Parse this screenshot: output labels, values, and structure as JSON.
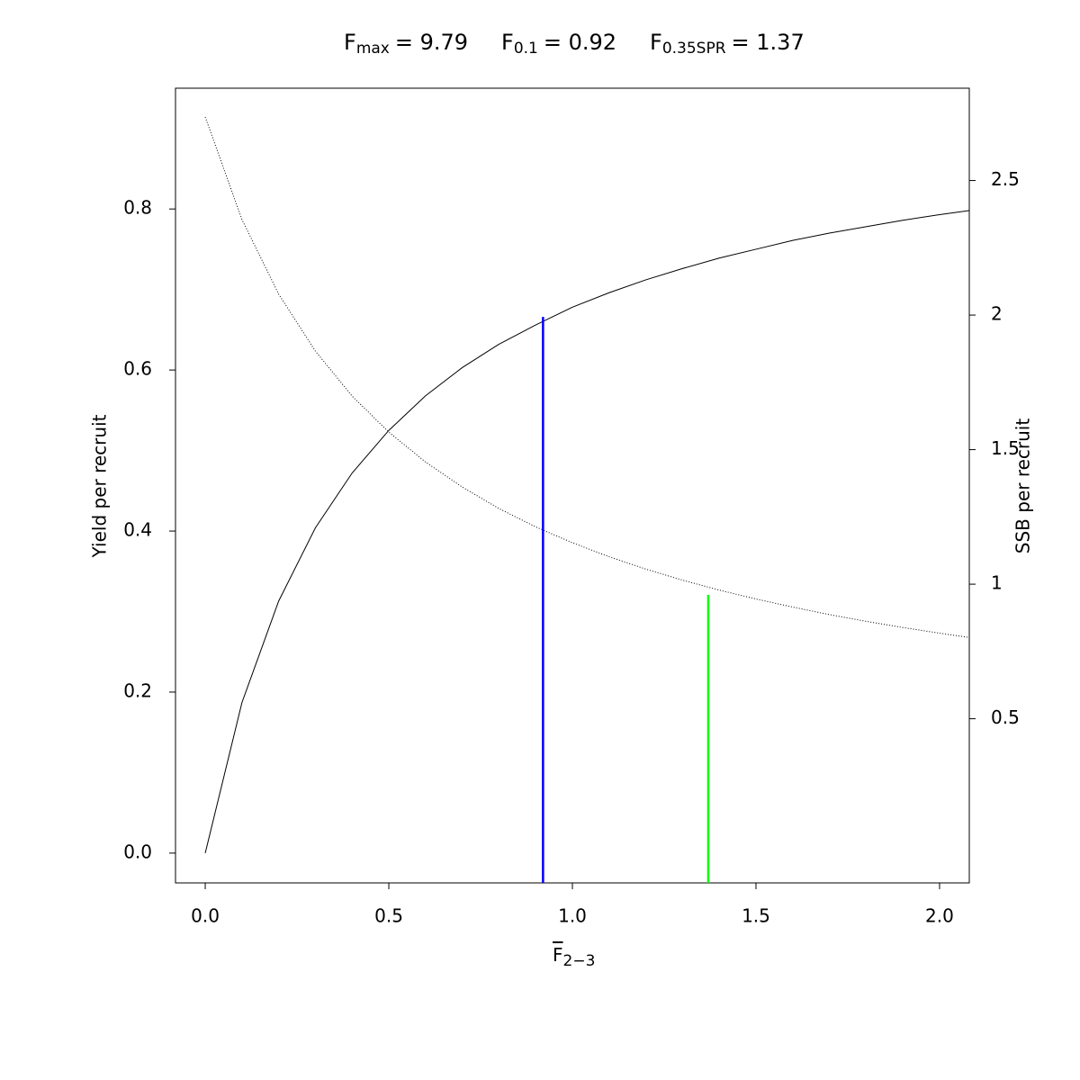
{
  "chart_data": {
    "type": "line",
    "title": [
      {
        "text": "F",
        "sub": "max",
        "rest": "= 9.79"
      },
      {
        "text": "F",
        "sub": "0.1",
        "rest": "= 0.92"
      },
      {
        "text": "F",
        "sub": "0.35SPR",
        "rest": "= 1.37"
      }
    ],
    "x_label": {
      "text": "F",
      "sub": "2−3"
    },
    "y_label": "Yield per recruit",
    "y2_label": "SSB per recruit",
    "x": [
      0,
      0.1,
      0.2,
      0.3,
      0.4,
      0.5,
      0.6,
      0.7,
      0.8,
      0.9,
      1.0,
      1.1,
      1.2,
      1.3,
      1.4,
      1.5,
      1.6,
      1.7,
      1.8,
      1.9,
      2.0,
      2.08
    ],
    "series": [
      {
        "color": "#000000",
        "line_style": "solid",
        "axis": "y",
        "values": [
          0,
          0.187,
          0.313,
          0.404,
          0.472,
          0.525,
          0.568,
          0.603,
          0.632,
          0.656,
          0.678,
          0.696,
          0.712,
          0.726,
          0.739,
          0.75,
          0.761,
          0.77,
          0.778,
          0.786,
          0.793,
          0.798
        ]
      },
      {
        "color": "#000000",
        "line_style": "dotted",
        "axis": "y2",
        "values": [
          2.736,
          2.355,
          2.078,
          1.866,
          1.699,
          1.565,
          1.454,
          1.361,
          1.281,
          1.213,
          1.154,
          1.102,
          1.056,
          1.015,
          0.978,
          0.945,
          0.915,
          0.887,
          0.862,
          0.839,
          0.818,
          0.802
        ]
      }
    ],
    "reference_lines": [
      {
        "x": 0.92,
        "top": 0.666,
        "axis": "y",
        "color": "#0000ff"
      },
      {
        "x": 1.37,
        "top": 0.96,
        "axis": "y2",
        "color": "#00ff00"
      }
    ],
    "xlim": [
      -0.081,
      2.081
    ],
    "ylim": [
      -0.037,
      0.95
    ],
    "y2lim": [
      -0.11,
      2.843
    ],
    "xticks": [
      {
        "value": 0,
        "label": "0.0"
      },
      0.5,
      {
        "value": 1,
        "label": "1.0"
      },
      1.5,
      {
        "value": 2,
        "label": "2.0"
      }
    ],
    "yticks": [
      {
        "value": 0,
        "label": "0.0"
      },
      0.2,
      0.4,
      0.6,
      0.8
    ],
    "y2ticks": [
      0.5,
      1,
      1.5,
      2,
      2.5
    ],
    "grid": false
  }
}
